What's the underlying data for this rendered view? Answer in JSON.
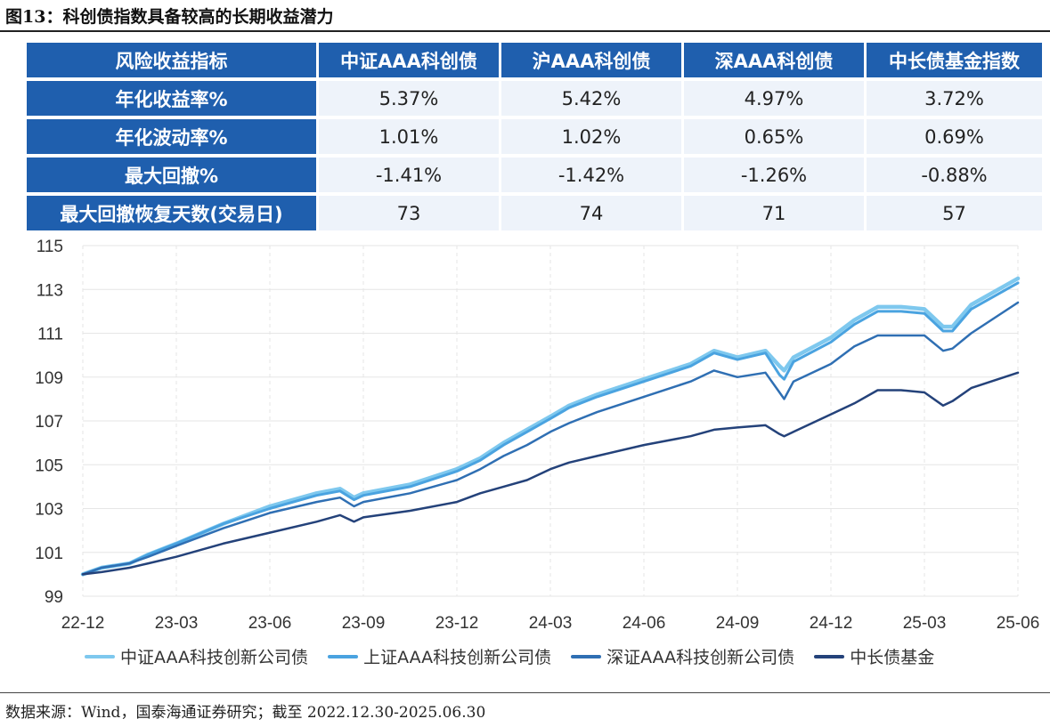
{
  "figure": {
    "title": "图13：科创债指数具备较高的长期收益潜力",
    "source": "数据来源：Wind，国泰海通证券研究；截至 2022.12.30-2025.06.30"
  },
  "table": {
    "header_label": "风险收益指标",
    "columns": [
      "中证AAA科创债",
      "沪AAA科创债",
      "深AAA科创债",
      "中长债基金指数"
    ],
    "rows": [
      {
        "label": "年化收益率%",
        "values": [
          "5.37%",
          "5.42%",
          "4.97%",
          "3.72%"
        ]
      },
      {
        "label": "年化波动率%",
        "values": [
          "1.01%",
          "1.02%",
          "0.65%",
          "0.69%"
        ]
      },
      {
        "label": "最大回撤%",
        "values": [
          "-1.41%",
          "-1.42%",
          "-1.26%",
          "-0.88%"
        ]
      },
      {
        "label": "最大回撤恢复天数(交易日)",
        "values": [
          "73",
          "74",
          "71",
          "57"
        ]
      }
    ]
  },
  "colors": {
    "header_bg": "#1f5fae",
    "cell_bg": "#eef3fa",
    "series": [
      "#7ec8ee",
      "#4aa3e0",
      "#2f6fb3",
      "#24427a"
    ]
  },
  "chart_data": {
    "type": "line",
    "x_ticks": [
      "22-12",
      "23-03",
      "23-06",
      "23-09",
      "23-12",
      "24-03",
      "24-06",
      "24-09",
      "24-12",
      "25-03",
      "25-06"
    ],
    "y_ticks": [
      "99",
      "101",
      "103",
      "105",
      "107",
      "109",
      "111",
      "113",
      "115"
    ],
    "ylim": [
      99,
      115
    ],
    "xlim": [
      0,
      10
    ],
    "grid": true,
    "legend_position": "bottom",
    "series": [
      {
        "name": "中证AAA科技创新公司债",
        "points": [
          [
            0,
            100.0
          ],
          [
            0.2,
            100.3
          ],
          [
            0.5,
            100.5
          ],
          [
            0.7,
            100.9
          ],
          [
            1,
            101.4
          ],
          [
            1.5,
            102.3
          ],
          [
            2,
            103.1
          ],
          [
            2.5,
            103.7
          ],
          [
            2.75,
            103.9
          ],
          [
            2.9,
            103.5
          ],
          [
            3,
            103.7
          ],
          [
            3.5,
            104.1
          ],
          [
            4,
            104.8
          ],
          [
            4.25,
            105.3
          ],
          [
            4.5,
            106.0
          ],
          [
            4.75,
            106.6
          ],
          [
            5,
            107.2
          ],
          [
            5.2,
            107.7
          ],
          [
            5.5,
            108.2
          ],
          [
            6,
            108.9
          ],
          [
            6.5,
            109.6
          ],
          [
            6.75,
            110.2
          ],
          [
            7,
            109.9
          ],
          [
            7.3,
            110.2
          ],
          [
            7.45,
            109.5
          ],
          [
            7.5,
            109.3
          ],
          [
            7.6,
            109.9
          ],
          [
            8,
            110.8
          ],
          [
            8.25,
            111.6
          ],
          [
            8.5,
            112.2
          ],
          [
            8.75,
            112.2
          ],
          [
            9,
            112.1
          ],
          [
            9.2,
            111.3
          ],
          [
            9.3,
            111.3
          ],
          [
            9.5,
            112.3
          ],
          [
            10,
            113.5
          ]
        ]
      },
      {
        "name": "上证AAA科技创新公司债",
        "points": [
          [
            0,
            100.0
          ],
          [
            0.2,
            100.3
          ],
          [
            0.5,
            100.5
          ],
          [
            0.7,
            100.9
          ],
          [
            1,
            101.4
          ],
          [
            1.5,
            102.3
          ],
          [
            2,
            103.0
          ],
          [
            2.5,
            103.6
          ],
          [
            2.75,
            103.8
          ],
          [
            2.9,
            103.4
          ],
          [
            3,
            103.6
          ],
          [
            3.5,
            104.0
          ],
          [
            4,
            104.7
          ],
          [
            4.25,
            105.2
          ],
          [
            4.5,
            105.9
          ],
          [
            4.75,
            106.5
          ],
          [
            5,
            107.1
          ],
          [
            5.2,
            107.6
          ],
          [
            5.5,
            108.1
          ],
          [
            6,
            108.8
          ],
          [
            6.5,
            109.5
          ],
          [
            6.75,
            110.1
          ],
          [
            7,
            109.8
          ],
          [
            7.3,
            110.1
          ],
          [
            7.45,
            109.1
          ],
          [
            7.5,
            108.9
          ],
          [
            7.6,
            109.7
          ],
          [
            8,
            110.6
          ],
          [
            8.25,
            111.4
          ],
          [
            8.5,
            112.0
          ],
          [
            8.75,
            112.0
          ],
          [
            9,
            111.9
          ],
          [
            9.2,
            111.1
          ],
          [
            9.3,
            111.1
          ],
          [
            9.5,
            112.1
          ],
          [
            10,
            113.3
          ]
        ]
      },
      {
        "name": "深证AAA科技创新公司债",
        "points": [
          [
            0,
            100.0
          ],
          [
            0.2,
            100.3
          ],
          [
            0.5,
            100.5
          ],
          [
            0.7,
            100.8
          ],
          [
            1,
            101.3
          ],
          [
            1.5,
            102.1
          ],
          [
            2,
            102.8
          ],
          [
            2.5,
            103.3
          ],
          [
            2.75,
            103.5
          ],
          [
            2.9,
            103.1
          ],
          [
            3,
            103.3
          ],
          [
            3.5,
            103.7
          ],
          [
            4,
            104.3
          ],
          [
            4.25,
            104.8
          ],
          [
            4.5,
            105.4
          ],
          [
            4.75,
            105.9
          ],
          [
            5,
            106.5
          ],
          [
            5.2,
            106.9
          ],
          [
            5.5,
            107.4
          ],
          [
            6,
            108.1
          ],
          [
            6.5,
            108.8
          ],
          [
            6.75,
            109.3
          ],
          [
            7,
            109.0
          ],
          [
            7.3,
            109.2
          ],
          [
            7.45,
            108.3
          ],
          [
            7.5,
            108.0
          ],
          [
            7.6,
            108.8
          ],
          [
            8,
            109.6
          ],
          [
            8.25,
            110.4
          ],
          [
            8.5,
            110.9
          ],
          [
            8.75,
            110.9
          ],
          [
            9,
            110.9
          ],
          [
            9.2,
            110.2
          ],
          [
            9.3,
            110.3
          ],
          [
            9.5,
            111.0
          ],
          [
            10,
            112.4
          ]
        ]
      },
      {
        "name": "中长债基金",
        "points": [
          [
            0,
            100.0
          ],
          [
            0.2,
            100.1
          ],
          [
            0.5,
            100.3
          ],
          [
            0.7,
            100.5
          ],
          [
            1,
            100.8
          ],
          [
            1.5,
            101.4
          ],
          [
            2,
            101.9
          ],
          [
            2.5,
            102.4
          ],
          [
            2.75,
            102.7
          ],
          [
            2.9,
            102.4
          ],
          [
            3,
            102.6
          ],
          [
            3.5,
            102.9
          ],
          [
            4,
            103.3
          ],
          [
            4.25,
            103.7
          ],
          [
            4.5,
            104.0
          ],
          [
            4.75,
            104.3
          ],
          [
            5,
            104.8
          ],
          [
            5.2,
            105.1
          ],
          [
            5.5,
            105.4
          ],
          [
            6,
            105.9
          ],
          [
            6.5,
            106.3
          ],
          [
            6.75,
            106.6
          ],
          [
            7,
            106.7
          ],
          [
            7.3,
            106.8
          ],
          [
            7.45,
            106.4
          ],
          [
            7.5,
            106.3
          ],
          [
            7.6,
            106.5
          ],
          [
            8,
            107.3
          ],
          [
            8.25,
            107.8
          ],
          [
            8.5,
            108.4
          ],
          [
            8.75,
            108.4
          ],
          [
            9,
            108.3
          ],
          [
            9.2,
            107.7
          ],
          [
            9.3,
            107.9
          ],
          [
            9.5,
            108.5
          ],
          [
            10,
            109.2
          ]
        ]
      }
    ]
  }
}
